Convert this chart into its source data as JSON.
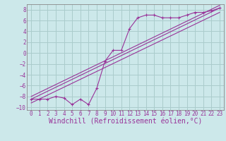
{
  "bg_color": "#cce8ea",
  "grid_color": "#aacccc",
  "line_color": "#993399",
  "marker_color": "#993399",
  "xlabel": "Windchill (Refroidissement éolien,°C)",
  "xlim": [
    -0.5,
    23.5
  ],
  "ylim": [
    -10.5,
    9.0
  ],
  "xticks": [
    0,
    1,
    2,
    3,
    4,
    5,
    6,
    7,
    8,
    9,
    10,
    11,
    12,
    13,
    14,
    15,
    16,
    17,
    18,
    19,
    20,
    21,
    22,
    23
  ],
  "yticks": [
    -10,
    -8,
    -6,
    -4,
    -2,
    0,
    2,
    4,
    6,
    8
  ],
  "curve1_x": [
    0,
    1,
    2,
    3,
    4,
    5,
    6,
    7,
    8,
    9,
    10,
    11,
    12,
    13,
    14,
    15,
    16,
    17,
    18,
    19,
    20,
    21,
    22,
    23
  ],
  "curve1_y": [
    -8.5,
    -8.5,
    -8.5,
    -8.0,
    -8.3,
    -9.5,
    -8.5,
    -9.5,
    -6.5,
    -1.5,
    0.5,
    0.5,
    4.5,
    6.5,
    7.0,
    7.0,
    6.5,
    6.5,
    6.5,
    7.0,
    7.5,
    7.5,
    7.8,
    8.3
  ],
  "line1_x": [
    0,
    23
  ],
  "line1_y": [
    -8.5,
    8.3
  ],
  "line2_x": [
    0,
    23
  ],
  "line2_y": [
    -9.2,
    7.5
  ],
  "line3_x": [
    0,
    23
  ],
  "line3_y": [
    -8.0,
    8.8
  ],
  "font_family": "monospace",
  "tick_fontsize": 5.5,
  "xlabel_fontsize": 7.0
}
